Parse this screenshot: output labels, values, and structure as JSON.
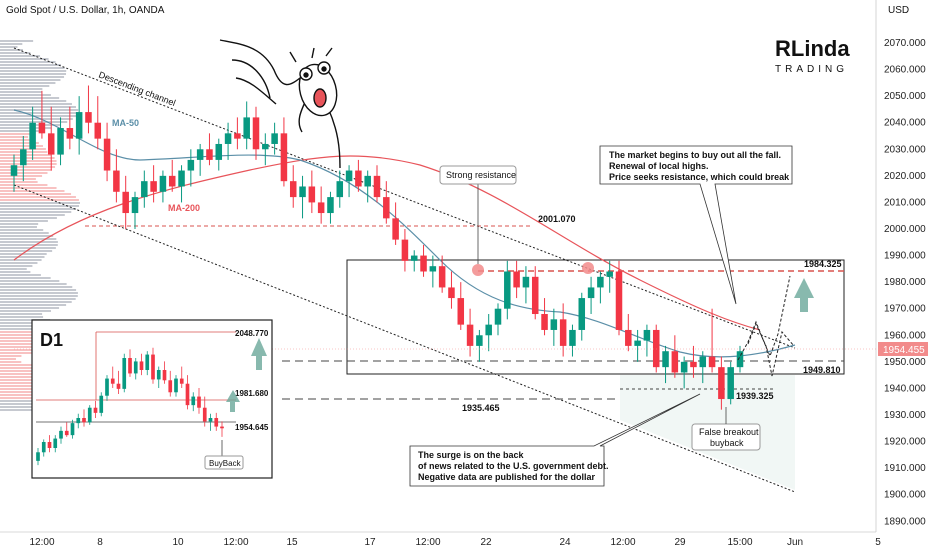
{
  "header": {
    "title": "Gold Spot / U.S. Dollar, 1h, OANDA",
    "currency": "USD"
  },
  "logo": {
    "line1": "RLinda",
    "line2": "TRADING"
  },
  "colors": {
    "bull": "#089981",
    "bear": "#f23645",
    "ma50": "#5b8fa8",
    "ma200": "#e8545a",
    "price_tag": "#f28b8b",
    "arrow": "#6aa89a"
  },
  "chart_data": {
    "type": "candlestick",
    "symbol": "Gold Spot / U.S. Dollar",
    "timeframe": "1h",
    "ylim": [
      1886,
      2082
    ],
    "y_ticks": [
      1890,
      1900,
      1910,
      1920,
      1930,
      1940,
      1950,
      1960,
      1970,
      1980,
      1990,
      2000,
      2010,
      2020,
      2030,
      2040,
      2050,
      2060,
      2070
    ],
    "x_ticks": [
      "12:00",
      "8",
      "10",
      "12:00",
      "15",
      "17",
      "12:00",
      "22",
      "24",
      "12:00",
      "29",
      "15:00",
      "Jun",
      "5"
    ],
    "last_price": "1954.455",
    "levels": [
      {
        "label": "2001.070",
        "value": 2001.07
      },
      {
        "label": "1984.325",
        "value": 1984.325
      },
      {
        "label": "1949.810",
        "value": 1949.81
      },
      {
        "label": "1939.325",
        "value": 1939.325
      },
      {
        "label": "1935.465",
        "value": 1935.465
      }
    ],
    "indicators": [
      {
        "name": "MA-50"
      },
      {
        "name": "MA-200"
      }
    ],
    "channel_label": "Descending channel",
    "annotations": {
      "strong_resistance": "Strong resistance",
      "market_note": [
        "The market begins to buy out all the fall.",
        "Renewal of local highs.",
        "Price seeks resistance, which could break"
      ],
      "surge_note": [
        "The surge is on the back",
        "of news related to the U.S. government debt.",
        "Negative data are published for the dollar"
      ],
      "false_breakout": [
        "False breakout",
        "buyback"
      ]
    },
    "candles": [
      [
        2020,
        2028,
        2014,
        2024
      ],
      [
        2024,
        2035,
        2018,
        2030
      ],
      [
        2030,
        2046,
        2026,
        2040
      ],
      [
        2040,
        2052,
        2034,
        2036
      ],
      [
        2036,
        2046,
        2022,
        2028
      ],
      [
        2028,
        2042,
        2024,
        2038
      ],
      [
        2038,
        2046,
        2030,
        2034
      ],
      [
        2034,
        2050,
        2028,
        2044
      ],
      [
        2044,
        2054,
        2036,
        2040
      ],
      [
        2040,
        2050,
        2030,
        2034
      ],
      [
        2034,
        2040,
        2018,
        2022
      ],
      [
        2022,
        2030,
        2010,
        2014
      ],
      [
        2014,
        2020,
        2000,
        2006
      ],
      [
        2006,
        2014,
        2000,
        2012
      ],
      [
        2012,
        2022,
        2008,
        2018
      ],
      [
        2018,
        2024,
        2010,
        2014
      ],
      [
        2014,
        2022,
        2010,
        2020
      ],
      [
        2020,
        2026,
        2014,
        2016
      ],
      [
        2016,
        2024,
        2010,
        2022
      ],
      [
        2022,
        2030,
        2016,
        2026
      ],
      [
        2026,
        2032,
        2020,
        2030
      ],
      [
        2030,
        2036,
        2024,
        2026
      ],
      [
        2026,
        2034,
        2022,
        2032
      ],
      [
        2032,
        2040,
        2026,
        2036
      ],
      [
        2036,
        2042,
        2030,
        2034
      ],
      [
        2034,
        2048,
        2030,
        2042
      ],
      [
        2042,
        2046,
        2026,
        2030
      ],
      [
        2030,
        2036,
        2024,
        2032
      ],
      [
        2032,
        2040,
        2028,
        2036
      ],
      [
        2036,
        2042,
        2016,
        2018
      ],
      [
        2018,
        2024,
        2008,
        2012
      ],
      [
        2012,
        2020,
        2004,
        2016
      ],
      [
        2016,
        2022,
        2006,
        2010
      ],
      [
        2010,
        2016,
        2002,
        2006
      ],
      [
        2006,
        2014,
        2002,
        2012
      ],
      [
        2012,
        2022,
        2008,
        2018
      ],
      [
        2018,
        2024,
        2012,
        2022
      ],
      [
        2022,
        2026,
        2014,
        2016
      ],
      [
        2016,
        2022,
        2010,
        2020
      ],
      [
        2020,
        2024,
        2010,
        2012
      ],
      [
        2012,
        2018,
        2002,
        2004
      ],
      [
        2004,
        2010,
        1994,
        1996
      ],
      [
        1996,
        2000,
        1984,
        1988
      ],
      [
        1988,
        1992,
        1984,
        1990
      ],
      [
        1990,
        1994,
        1982,
        1984
      ],
      [
        1984,
        1990,
        1978,
        1986
      ],
      [
        1986,
        1990,
        1976,
        1978
      ],
      [
        1978,
        1984,
        1970,
        1974
      ],
      [
        1974,
        1980,
        1962,
        1964
      ],
      [
        1964,
        1970,
        1952,
        1956
      ],
      [
        1956,
        1962,
        1950,
        1960
      ],
      [
        1960,
        1968,
        1954,
        1964
      ],
      [
        1964,
        1972,
        1960,
        1970
      ],
      [
        1970,
        1988,
        1966,
        1984
      ],
      [
        1984,
        1988,
        1974,
        1978
      ],
      [
        1978,
        1986,
        1972,
        1982
      ],
      [
        1982,
        1986,
        1966,
        1968
      ],
      [
        1968,
        1974,
        1960,
        1962
      ],
      [
        1962,
        1970,
        1956,
        1966
      ],
      [
        1966,
        1972,
        1952,
        1956
      ],
      [
        1956,
        1964,
        1952,
        1962
      ],
      [
        1962,
        1976,
        1958,
        1974
      ],
      [
        1974,
        1982,
        1968,
        1978
      ],
      [
        1978,
        1984,
        1972,
        1982
      ],
      [
        1982,
        1988,
        1976,
        1984
      ],
      [
        1984,
        1988,
        1960,
        1962
      ],
      [
        1962,
        1968,
        1954,
        1956
      ],
      [
        1956,
        1962,
        1950,
        1958
      ],
      [
        1958,
        1964,
        1952,
        1962
      ],
      [
        1962,
        1964,
        1946,
        1948
      ],
      [
        1948,
        1956,
        1942,
        1954
      ],
      [
        1954,
        1960,
        1944,
        1946
      ],
      [
        1946,
        1952,
        1940,
        1950
      ],
      [
        1950,
        1956,
        1944,
        1948
      ],
      [
        1948,
        1954,
        1942,
        1952
      ],
      [
        1952,
        1970,
        1946,
        1948
      ],
      [
        1948,
        1952,
        1932,
        1936
      ],
      [
        1936,
        1950,
        1934,
        1948
      ],
      [
        1948,
        1956,
        1946,
        1954
      ]
    ],
    "inset": {
      "label": "D1",
      "levels": [
        {
          "label": "2048.770",
          "value": 2048.77
        },
        {
          "label": "1981.680",
          "value": 1981.68
        },
        {
          "label": "1954.645",
          "value": 1954.645
        }
      ],
      "note": "BuyBack",
      "ylim": [
        1900,
        2075
      ],
      "candles": [
        [
          1920,
          1935,
          1915,
          1930
        ],
        [
          1930,
          1945,
          1925,
          1942
        ],
        [
          1942,
          1950,
          1930,
          1935
        ],
        [
          1935,
          1950,
          1930,
          1946
        ],
        [
          1946,
          1960,
          1940,
          1955
        ],
        [
          1955,
          1965,
          1948,
          1950
        ],
        [
          1950,
          1968,
          1946,
          1964
        ],
        [
          1964,
          1975,
          1958,
          1970
        ],
        [
          1970,
          1980,
          1960,
          1965
        ],
        [
          1965,
          1985,
          1962,
          1982
        ],
        [
          1982,
          1990,
          1970,
          1976
        ],
        [
          1976,
          2000,
          1972,
          1996
        ],
        [
          1996,
          2020,
          1990,
          2016
        ],
        [
          2016,
          2030,
          2005,
          2010
        ],
        [
          2010,
          2025,
          1998,
          2004
        ],
        [
          2004,
          2045,
          2000,
          2040
        ],
        [
          2040,
          2050,
          2018,
          2022
        ],
        [
          2022,
          2040,
          2015,
          2036
        ],
        [
          2036,
          2045,
          2020,
          2026
        ],
        [
          2026,
          2048,
          2020,
          2044
        ],
        [
          2044,
          2052,
          2010,
          2015
        ],
        [
          2015,
          2030,
          2005,
          2026
        ],
        [
          2026,
          2036,
          2010,
          2014
        ],
        [
          2014,
          2025,
          1995,
          2000
        ],
        [
          2000,
          2020,
          1995,
          2016
        ],
        [
          2016,
          2030,
          2005,
          2010
        ],
        [
          2010,
          2020,
          1980,
          1985
        ],
        [
          1985,
          2000,
          1978,
          1995
        ],
        [
          1995,
          2005,
          1975,
          1982
        ],
        [
          1982,
          1995,
          1960,
          1966
        ],
        [
          1966,
          1975,
          1955,
          1970
        ],
        [
          1970,
          1976,
          1955,
          1960
        ],
        [
          1960,
          1966,
          1948,
          1958
        ]
      ]
    }
  }
}
